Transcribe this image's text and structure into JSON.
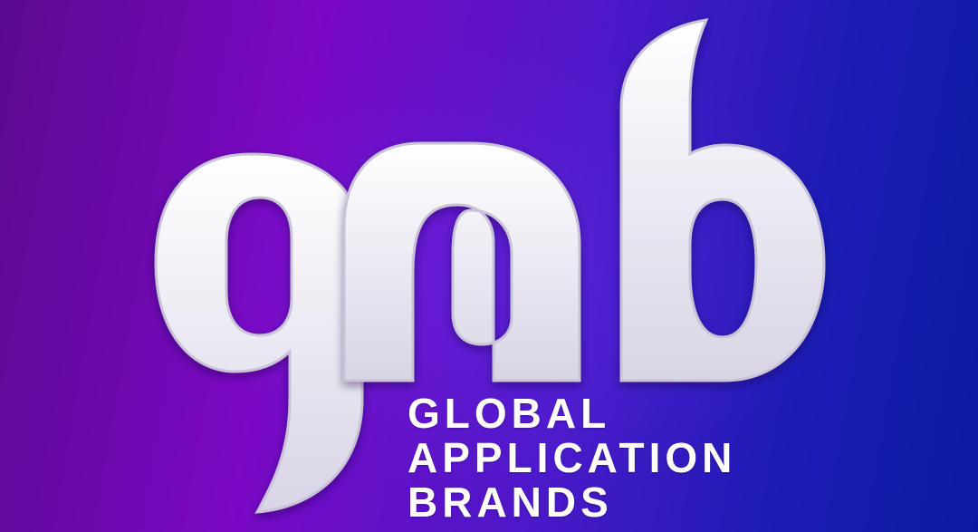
{
  "logo": {
    "wordmark_lines": [
      "GLOBAL",
      "APPLICATION",
      "BRANDS"
    ],
    "mark_letters": "gab"
  },
  "colors": {
    "background_left": "#5a0a8f",
    "background_center": "#7a08c4",
    "background_right": "#0d1aa0",
    "mark_fill": "#ffffff"
  }
}
